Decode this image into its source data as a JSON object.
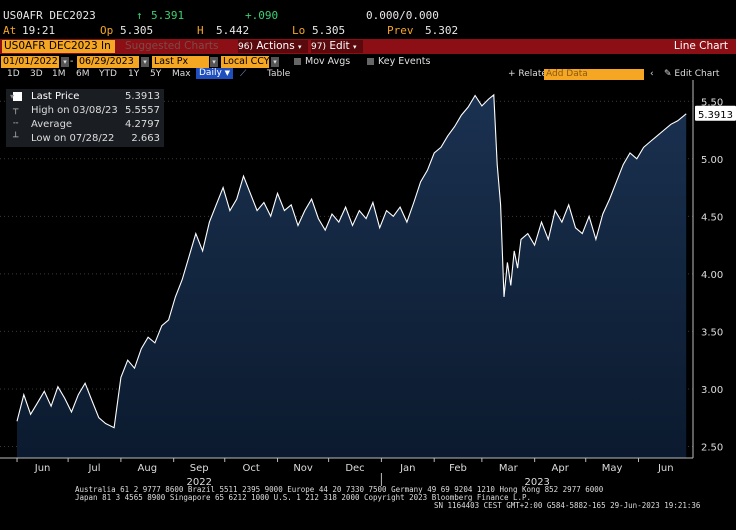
{
  "quote": {
    "ticker": "US0AFR DEC2023",
    "last_arrow": "↑",
    "last": "5.391",
    "change": "+.090",
    "bid_ask": "0.000/0.000",
    "at_label": "At",
    "time": "19:21",
    "op_label": "Op",
    "open": "5.305",
    "hi_label": "H",
    "high": "5.442",
    "lo_label": "Lo",
    "low": "5.305",
    "prev_label": "Prev",
    "prev": "5.302"
  },
  "cmdbar": {
    "security": "US0AFR DEC2023 In",
    "suggested": "Suggested Charts",
    "actions_num": "96)",
    "actions": "Actions",
    "edit_num": "97)",
    "edit": "Edit",
    "title": "Line Chart"
  },
  "settings": {
    "start_date": "01/01/2022",
    "end_date": "06/29/2023",
    "field": "Last Px",
    "currency": "Local CCY",
    "mov_avgs": "Mov Avgs",
    "key_events": "Key Events"
  },
  "ranges": [
    "1D",
    "3D",
    "1M",
    "6M",
    "YTD",
    "1Y",
    "5Y",
    "Max"
  ],
  "frequency": "Daily",
  "table_label": "Table",
  "related_data": "Related Dat",
  "add_data_placeholder": "Add Data",
  "edit_chart": "Edit Chart",
  "legend": {
    "last_price_label": "Last Price",
    "last_price_value": "5.3913",
    "high_label": "High on 03/08/23",
    "high_value": "5.5557",
    "average_label": "Average",
    "average_value": "4.2797",
    "low_label": "Low on 07/28/22",
    "low_value": "2.663"
  },
  "colors": {
    "line": "#ffffff",
    "area_top": "#1a3150",
    "area_bottom": "#0b1a2e",
    "accent_orange": "#f5a623",
    "bar_red": "#8b0f14",
    "up_green": "#3cd070"
  },
  "chart_data": {
    "type": "area",
    "ylim": [
      2.4,
      5.65
    ],
    "yticks": [
      "2.50",
      "3.00",
      "3.50",
      "4.00",
      "4.50",
      "5.00",
      "5.50"
    ],
    "last_value_label": "5.3913",
    "x_month_labels": [
      "Jun",
      "Jul",
      "Aug",
      "Sep",
      "Oct",
      "Nov",
      "Dec",
      "Jan",
      "Feb",
      "Mar",
      "Apr",
      "May",
      "Jun"
    ],
    "x_year_labels": [
      "2022",
      "2023"
    ],
    "series": [
      {
        "x": [
          "2022-06-01",
          "2022-06-05",
          "2022-06-09",
          "2022-06-13",
          "2022-06-17",
          "2022-06-21",
          "2022-06-25",
          "2022-06-29",
          "2022-07-03",
          "2022-07-07",
          "2022-07-11",
          "2022-07-15",
          "2022-07-19",
          "2022-07-23",
          "2022-07-28",
          "2022-08-01",
          "2022-08-05",
          "2022-08-09",
          "2022-08-13",
          "2022-08-17",
          "2022-08-21",
          "2022-08-25",
          "2022-08-29",
          "2022-09-02",
          "2022-09-06",
          "2022-09-10",
          "2022-09-14",
          "2022-09-18",
          "2022-09-22",
          "2022-09-26",
          "2022-09-30",
          "2022-10-04",
          "2022-10-08",
          "2022-10-12",
          "2022-10-16",
          "2022-10-20",
          "2022-10-24",
          "2022-10-28",
          "2022-11-01",
          "2022-11-05",
          "2022-11-09",
          "2022-11-13",
          "2022-11-17",
          "2022-11-21",
          "2022-11-25",
          "2022-11-29",
          "2022-12-03",
          "2022-12-07",
          "2022-12-11",
          "2022-12-15",
          "2022-12-19",
          "2022-12-23",
          "2022-12-27",
          "2022-12-31",
          "2023-01-04",
          "2023-01-08",
          "2023-01-12",
          "2023-01-16",
          "2023-01-20",
          "2023-01-24",
          "2023-01-28",
          "2023-02-01",
          "2023-02-05",
          "2023-02-09",
          "2023-02-13",
          "2023-02-17",
          "2023-02-21",
          "2023-02-25",
          "2023-03-01",
          "2023-03-05",
          "2023-03-08",
          "2023-03-10",
          "2023-03-12",
          "2023-03-14",
          "2023-03-16",
          "2023-03-18",
          "2023-03-20",
          "2023-03-22",
          "2023-03-24",
          "2023-03-28",
          "2023-04-01",
          "2023-04-05",
          "2023-04-09",
          "2023-04-13",
          "2023-04-17",
          "2023-04-21",
          "2023-04-25",
          "2023-04-29",
          "2023-05-03",
          "2023-05-07",
          "2023-05-11",
          "2023-05-15",
          "2023-05-19",
          "2023-05-23",
          "2023-05-27",
          "2023-05-31",
          "2023-06-04",
          "2023-06-08",
          "2023-06-12",
          "2023-06-16",
          "2023-06-20",
          "2023-06-24",
          "2023-06-29"
        ],
        "y": [
          2.72,
          2.95,
          2.78,
          2.88,
          2.98,
          2.85,
          3.02,
          2.92,
          2.8,
          2.95,
          3.05,
          2.9,
          2.75,
          2.7,
          2.663,
          3.1,
          3.25,
          3.18,
          3.35,
          3.45,
          3.4,
          3.55,
          3.6,
          3.8,
          3.95,
          4.15,
          4.35,
          4.2,
          4.45,
          4.6,
          4.75,
          4.55,
          4.65,
          4.85,
          4.7,
          4.55,
          4.62,
          4.5,
          4.7,
          4.55,
          4.6,
          4.42,
          4.55,
          4.65,
          4.48,
          4.38,
          4.52,
          4.45,
          4.58,
          4.42,
          4.55,
          4.48,
          4.62,
          4.4,
          4.55,
          4.5,
          4.58,
          4.45,
          4.62,
          4.8,
          4.9,
          5.05,
          5.1,
          5.2,
          5.28,
          5.38,
          5.45,
          5.55,
          5.46,
          5.52,
          5.5557,
          4.95,
          4.6,
          3.8,
          4.1,
          3.9,
          4.2,
          4.05,
          4.3,
          4.35,
          4.25,
          4.45,
          4.3,
          4.55,
          4.45,
          4.6,
          4.4,
          4.35,
          4.5,
          4.3,
          4.52,
          4.65,
          4.8,
          4.95,
          5.05,
          5.0,
          5.1,
          5.15,
          5.2,
          5.25,
          5.3,
          5.33,
          5.3913
        ]
      }
    ]
  },
  "footer": {
    "line1": "Australia 61 2 9777 8600 Brazil 5511 2395 9000 Europe 44 20 7330 7500 Germany 49 69 9204 1210 Hong Kong 852 2977 6000",
    "line2": "Japan 81 3 4565 8900       Singapore 65 6212 1000       U.S. 1 212 318 2000          Copyright 2023 Bloomberg Finance L.P.",
    "line3": "SN 1164403 CEST GMT+2:00 G584-5882-165 29-Jun-2023 19:21:36"
  }
}
